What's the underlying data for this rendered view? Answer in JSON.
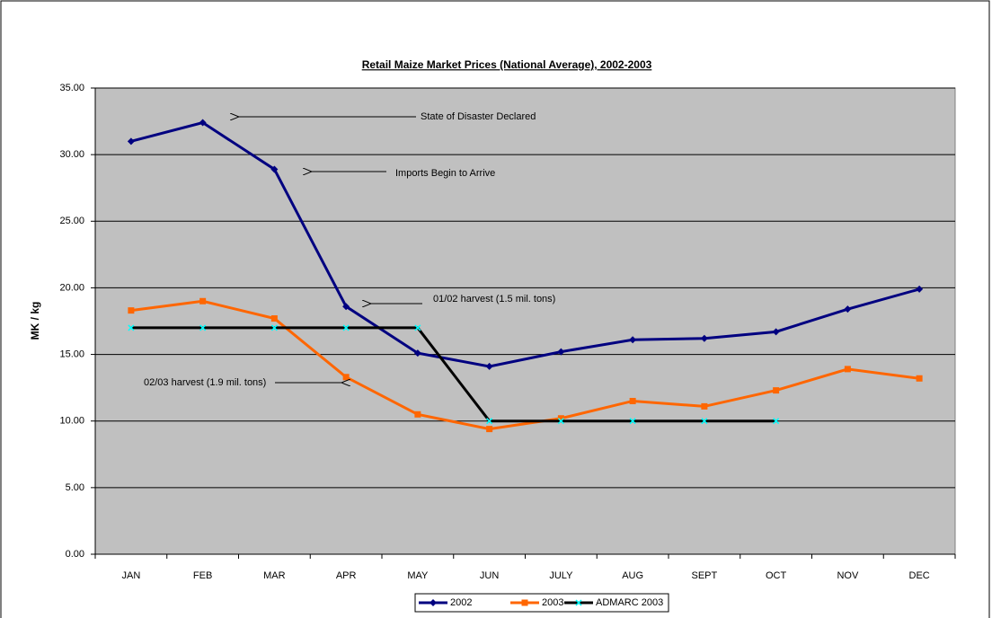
{
  "chart_data": {
    "type": "line",
    "title": "Retail Maize Market Prices (National Average), 2002-2003",
    "y_label": "MK / kg",
    "categories": [
      "JAN",
      "FEB",
      "MAR",
      "APR",
      "MAY",
      "JUN",
      "JULY",
      "AUG",
      "SEPT",
      "OCT",
      "NOV",
      "DEC"
    ],
    "series": [
      {
        "name": "2002",
        "color": "#000080",
        "marker": "diamond",
        "values": [
          31.0,
          32.4,
          28.9,
          18.6,
          15.1,
          14.1,
          15.2,
          16.1,
          16.2,
          16.7,
          18.4,
          19.9
        ]
      },
      {
        "name": "2003",
        "color": "#FF6600",
        "marker": "square",
        "values": [
          18.3,
          19.0,
          17.7,
          13.3,
          10.5,
          9.4,
          10.2,
          11.5,
          11.1,
          12.3,
          13.9,
          13.2
        ]
      },
      {
        "name": "ADMARC 2003",
        "color": "#000000",
        "marker_color": "#00FFFF",
        "marker": "x",
        "values": [
          17,
          17,
          17,
          17,
          17,
          10,
          10,
          10,
          10,
          10,
          null,
          null
        ]
      }
    ],
    "ylim": [
      0,
      35
    ],
    "yticks": [
      {
        "value": 0,
        "label": "0.00"
      },
      {
        "value": 5,
        "label": "5.00"
      },
      {
        "value": 10,
        "label": "10.00"
      },
      {
        "value": 15,
        "label": "15.00"
      },
      {
        "value": 20,
        "label": "20.00"
      },
      {
        "value": 25,
        "label": "25.00"
      },
      {
        "value": 30,
        "label": "30.00"
      },
      {
        "value": 35,
        "label": "35.00"
      }
    ],
    "grid": true,
    "legend": "bottom",
    "plot_background": "#C0C0C0",
    "annotations": [
      "State of Disaster Declared",
      "Imports Begin to Arrive",
      "01/02 harvest (1.5 mil. tons)",
      "02/03 harvest (1.9 mil. tons)"
    ]
  }
}
